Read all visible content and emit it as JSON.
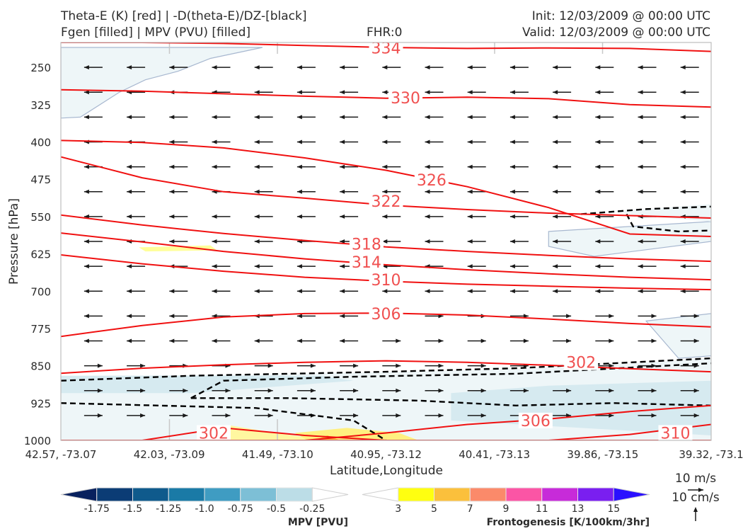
{
  "header": {
    "left_line1": "Theta-E (K) [red] | -D(theta-E)/DZ-[black]",
    "left_line2": "Fgen [filled] | MPV (PVU) [filled]",
    "fhr": "FHR:0",
    "init": "Init: 12/03/2009 @ 00:00 UTC",
    "valid": "Valid: 12/03/2009 @ 00:00 UTC"
  },
  "chart_data": {
    "type": "cross-section",
    "xlabel": "Latitude,Longitude",
    "ylabel": "Pressure [hPa]",
    "x_ticks": [
      "42.57, -73.07",
      "42.03, -73.09",
      "41.49, -73.10",
      "40.95, -73.12",
      "40.41, -73.13",
      "39.86, -73.15",
      "39.32, -73.1"
    ],
    "y_ticks": [
      250,
      325,
      400,
      475,
      550,
      625,
      700,
      775,
      850,
      925,
      1000
    ],
    "ylim": [
      1000,
      200
    ],
    "theta_e_contours": [
      {
        "level": "334",
        "pressure": [
          200,
          200,
          202,
          206,
          210,
          212,
          211,
          212,
          218
        ],
        "label_x": 0.5,
        "label_p": 211
      },
      {
        "level": "330",
        "pressure": [
          295,
          298,
          303,
          308,
          312,
          310,
          313,
          325,
          330
        ],
        "label_x": 0.53,
        "label_p": 311
      },
      {
        "level": "326",
        "pressure": [
          397,
          401,
          412,
          432,
          457,
          490,
          532,
          585,
          590
        ],
        "label_x": 0.57,
        "label_p": 476
      },
      {
        "level": "322",
        "pressure": [
          430,
          472,
          500,
          513,
          527,
          536,
          543,
          548,
          553
        ],
        "label_x": 0.5,
        "label_p": 519
      },
      {
        "level": "318",
        "pressure": [
          547,
          567,
          584,
          598,
          611,
          620,
          628,
          635,
          640
        ],
        "label_x": 0.47,
        "label_p": 605
      },
      {
        "level": "314",
        "pressure": [
          583,
          601,
          620,
          635,
          647,
          657,
          665,
          672,
          677
        ],
        "label_x": 0.47,
        "label_p": 641
      },
      {
        "level": "310",
        "pressure": [
          627,
          645,
          660,
          672,
          680,
          686,
          690,
          694,
          697
        ],
        "label_x": 0.5,
        "label_p": 677
      },
      {
        "level": "306",
        "pressure": [
          791,
          769,
          752,
          745,
          744,
          748,
          756,
          765,
          772
        ],
        "label_x": 0.5,
        "label_p": 745
      },
      {
        "level": "302",
        "pressure": [
          865,
          855,
          848,
          843,
          840,
          843,
          849,
          856,
          862
        ],
        "label_x": 0.8,
        "label_p": 843
      },
      {
        "level": "306",
        "pressure": [
          1000,
          1000,
          1000,
          1000,
          985,
          968,
          957,
          942,
          930
        ],
        "label_x": 0.73,
        "label_p": 960
      },
      {
        "level": "302",
        "pressure": [
          1000,
          1000,
          975,
          990,
          1000,
          1000,
          1000,
          1000,
          1000
        ],
        "label_x": 0.235,
        "label_p": 985
      },
      {
        "level": "310",
        "pressure": [
          1000,
          1000,
          1000,
          1000,
          1000,
          1000,
          1000,
          988,
          968
        ],
        "label_x": 0.945,
        "label_p": 985
      }
    ],
    "mpv_colorbar": {
      "label": "MPV [PVU]",
      "ticks": [
        "-1.75",
        "-1.5",
        "-1.25",
        "-1.0",
        "-0.75",
        "-0.5",
        "-0.25"
      ],
      "colors": [
        "#08215e",
        "#0b3c75",
        "#0f5a8c",
        "#1a7aa6",
        "#3f9cc2",
        "#7dbfd6",
        "#bcdde7",
        "#ffffff"
      ]
    },
    "fgen_colorbar": {
      "label": "Frontogenesis [K/100km/3hr]",
      "ticks": [
        "3",
        "5",
        "7",
        "9",
        "11",
        "13",
        "15"
      ],
      "colors": [
        "#ffffff",
        "#ffff10",
        "#fbc03c",
        "#fb8a6a",
        "#fb55a5",
        "#c72bd9",
        "#7a1ff0",
        "#2a10ff"
      ]
    },
    "vector_scale": {
      "horizontal": "10 m/s",
      "vertical": "10 cm/s"
    }
  }
}
